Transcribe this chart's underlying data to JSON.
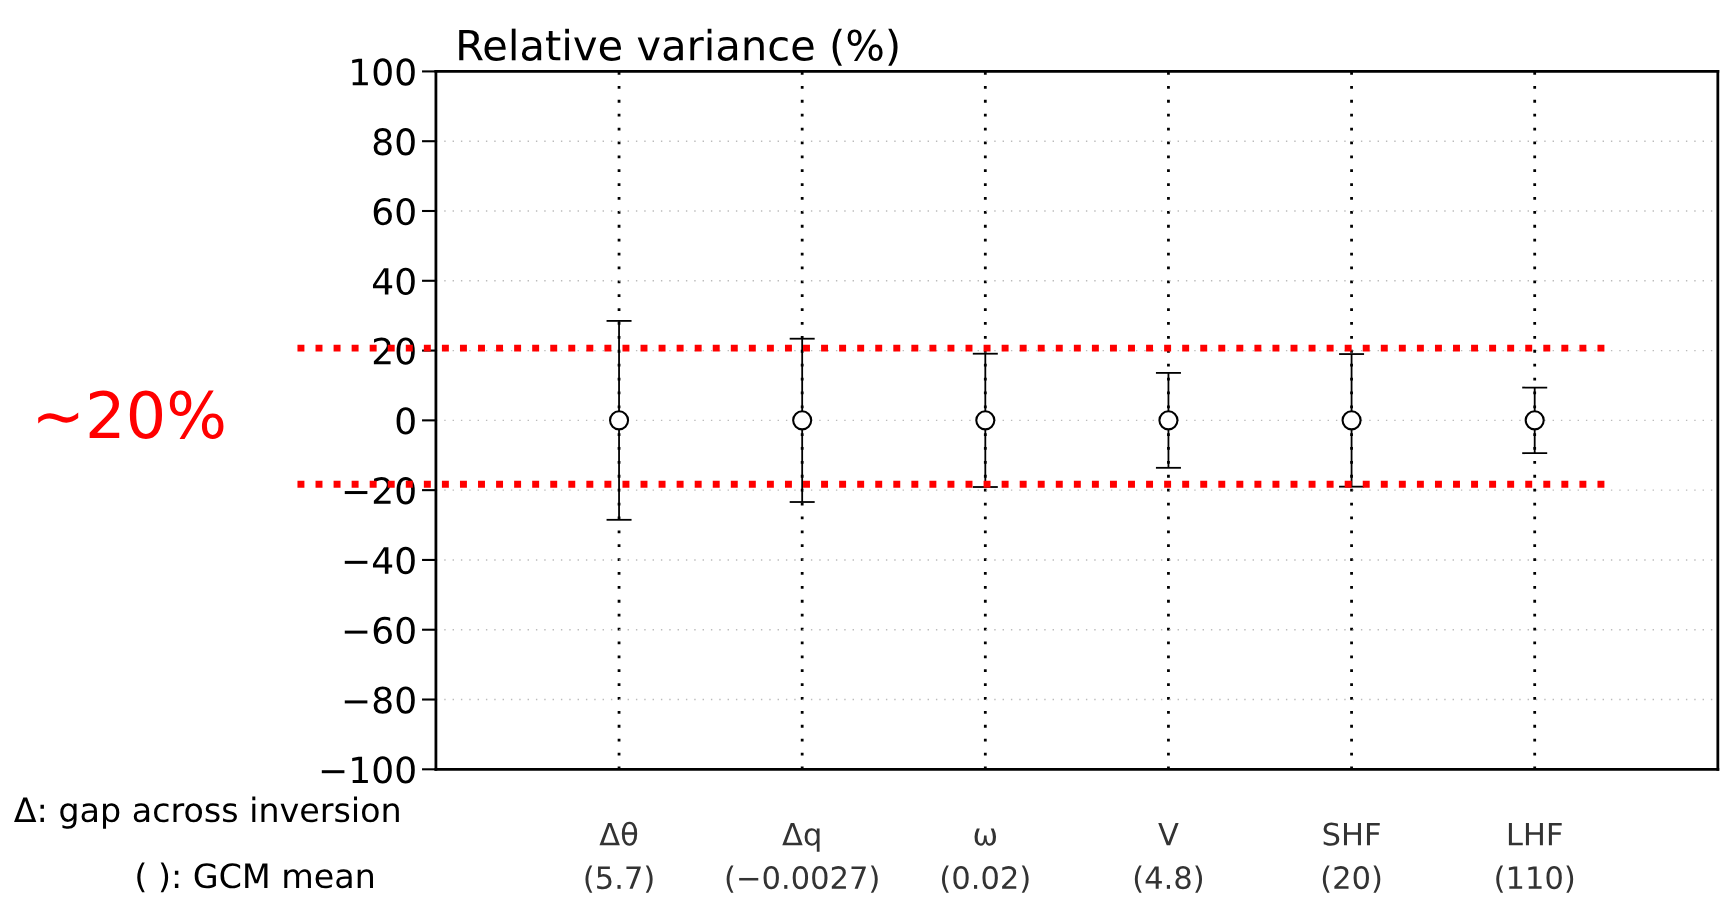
{
  "chart_data": {
    "type": "scatter",
    "title": "Relative variance (%)",
    "categories": [
      "Δθ\n(5.7)",
      "Δq\n(−0.0027)",
      "ω\n(0.02)",
      "V\n(4.8)",
      "SHF\n(20)",
      "LHF\n(110)"
    ],
    "series": [
      {
        "color": "#000000",
        "values": [
          0,
          0,
          0,
          0,
          0,
          0
        ],
        "errors": [
          28.5,
          23.4,
          19.1,
          13.6,
          19,
          9.4
        ]
      }
    ],
    "ylim": [
      -100,
      100
    ],
    "yticks": [
      {
        "value": -100,
        "label": "−100"
      },
      {
        "value": -80,
        "label": "−80"
      },
      {
        "value": -60,
        "label": "−60"
      },
      {
        "value": -40,
        "label": "−40"
      },
      {
        "value": -20,
        "label": "−20"
      },
      0,
      20,
      40,
      60,
      80,
      100
    ],
    "marker": "circle",
    "grid": true,
    "ref_lines": [
      {
        "axis": "y",
        "value": 20.7,
        "color": "#ff0000",
        "line_style": "dotted"
      },
      {
        "axis": "y",
        "value": -18.3,
        "color": "#ff0000",
        "line_style": "dotted"
      }
    ],
    "annotations": [
      "∼20%",
      "Δ: gap across inversion",
      "( ): GCM mean"
    ]
  }
}
